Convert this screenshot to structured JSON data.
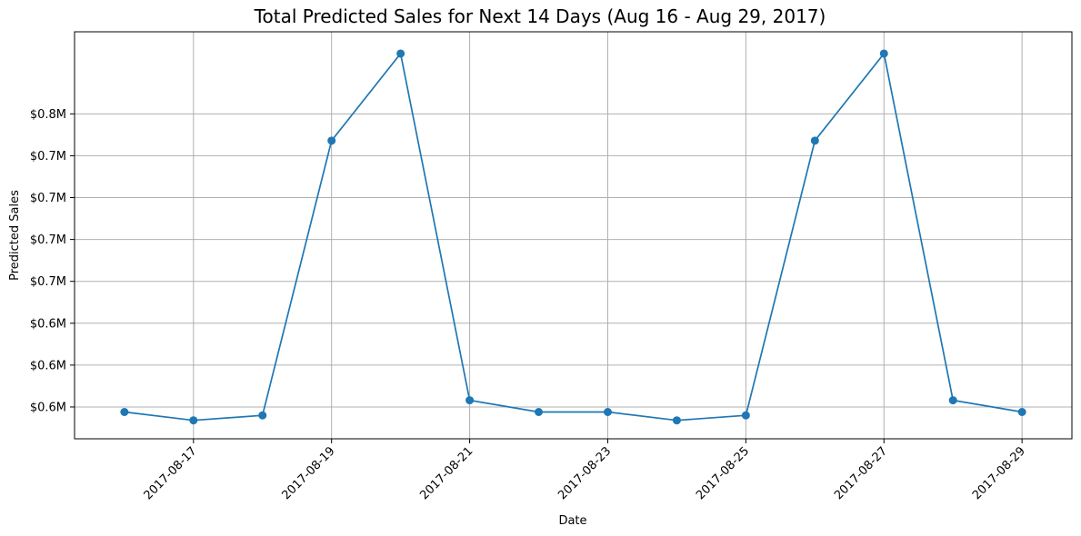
{
  "chart_data": {
    "type": "line",
    "title": "Total Predicted Sales for Next 14 Days (Aug 16 - Aug 29, 2017)",
    "xlabel": "Date",
    "ylabel": "Predicted Sales",
    "grid": true,
    "legend": "none",
    "color": "#1f77b4",
    "x": [
      "2017-08-16",
      "2017-08-17",
      "2017-08-18",
      "2017-08-19",
      "2017-08-20",
      "2017-08-21",
      "2017-08-22",
      "2017-08-23",
      "2017-08-24",
      "2017-08-25",
      "2017-08-26",
      "2017-08-27",
      "2017-08-28",
      "2017-08-29"
    ],
    "series": [
      {
        "values": [
          0.597,
          0.592,
          0.595,
          0.759,
          0.811,
          0.604,
          0.597,
          0.597,
          0.592,
          0.595,
          0.759,
          0.811,
          0.604,
          0.597
        ]
      }
    ],
    "ylim": [
      0.581,
      0.824
    ],
    "y_ticks": [
      0.6,
      0.625,
      0.65,
      0.675,
      0.7,
      0.725,
      0.75,
      0.775
    ],
    "y_tick_labels": [
      "$0.6M",
      "$0.6M",
      "$0.6M",
      "$0.7M",
      "$0.7M",
      "$0.7M",
      "$0.7M",
      "$0.8M"
    ],
    "x_ticks": [
      "2017-08-17",
      "2017-08-19",
      "2017-08-21",
      "2017-08-23",
      "2017-08-25",
      "2017-08-27",
      "2017-08-29"
    ]
  }
}
